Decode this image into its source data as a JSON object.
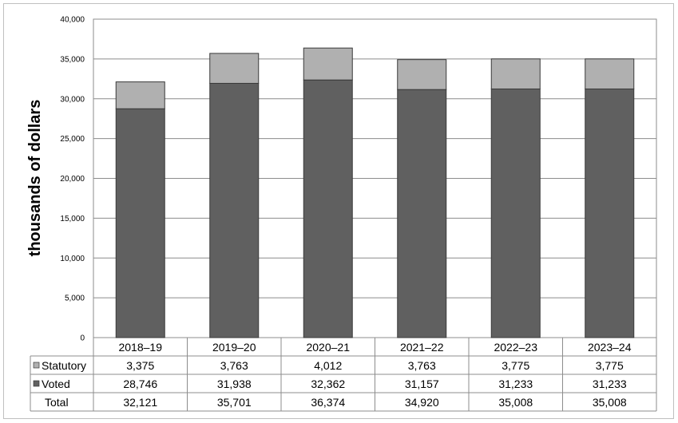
{
  "chart_data": {
    "type": "bar",
    "stacked": true,
    "ylabel": "thousands of dollars",
    "ylim": [
      0,
      40000
    ],
    "yticks": [
      "0",
      "5,000",
      "10,000",
      "15,000",
      "20,000",
      "25,000",
      "30,000",
      "35,000",
      "40,000"
    ],
    "grid": true,
    "categories": [
      "2018–19",
      "2019–20",
      "2020–21",
      "2021–22",
      "2022–23",
      "2023–24"
    ],
    "series": [
      {
        "name": "Statutory",
        "color": "#b0b0b0",
        "values": [
          3375,
          3763,
          4012,
          3763,
          3775,
          3775
        ],
        "labels": [
          "3,375",
          "3,763",
          "4,012",
          "3,763",
          "3,775",
          "3,775"
        ]
      },
      {
        "name": "Voted",
        "color": "#606060",
        "values": [
          28746,
          31938,
          32362,
          31157,
          31233,
          31233
        ],
        "labels": [
          "28,746",
          "31,938",
          "32,362",
          "31,157",
          "31,233",
          "31,233"
        ]
      }
    ],
    "total": {
      "name": "Total",
      "values": [
        32121,
        35701,
        36374,
        34920,
        35008,
        35008
      ],
      "labels": [
        "32,121",
        "35,701",
        "36,374",
        "34,920",
        "35,008",
        "35,008"
      ]
    },
    "legend": "data-table-below"
  }
}
